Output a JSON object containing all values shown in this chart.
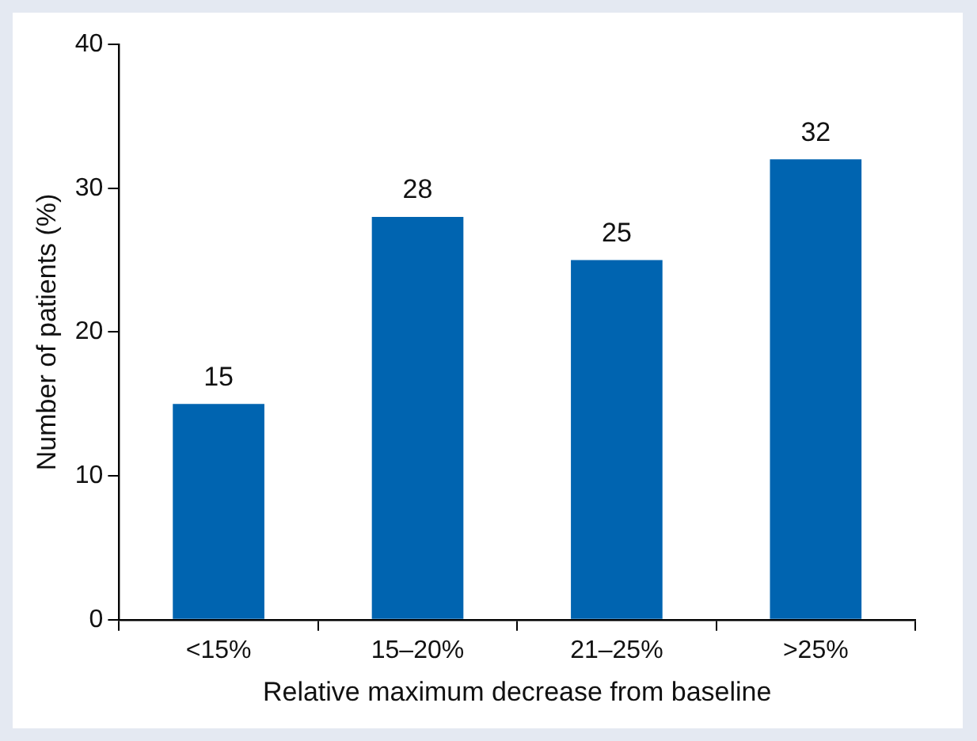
{
  "chart_data": {
    "type": "bar",
    "xlabel": "Relative maximum decrease from baseline",
    "ylabel": "Number of patients (%)",
    "categories": [
      "<15%",
      "15–20%",
      "21–25%",
      ">25%"
    ],
    "values": [
      15,
      28,
      25,
      32
    ],
    "color": "#0064b0",
    "ylim": [
      0,
      40
    ],
    "yticks": [
      0,
      10,
      20,
      30,
      40
    ],
    "grid": false,
    "legend": false,
    "data_labels": true
  }
}
